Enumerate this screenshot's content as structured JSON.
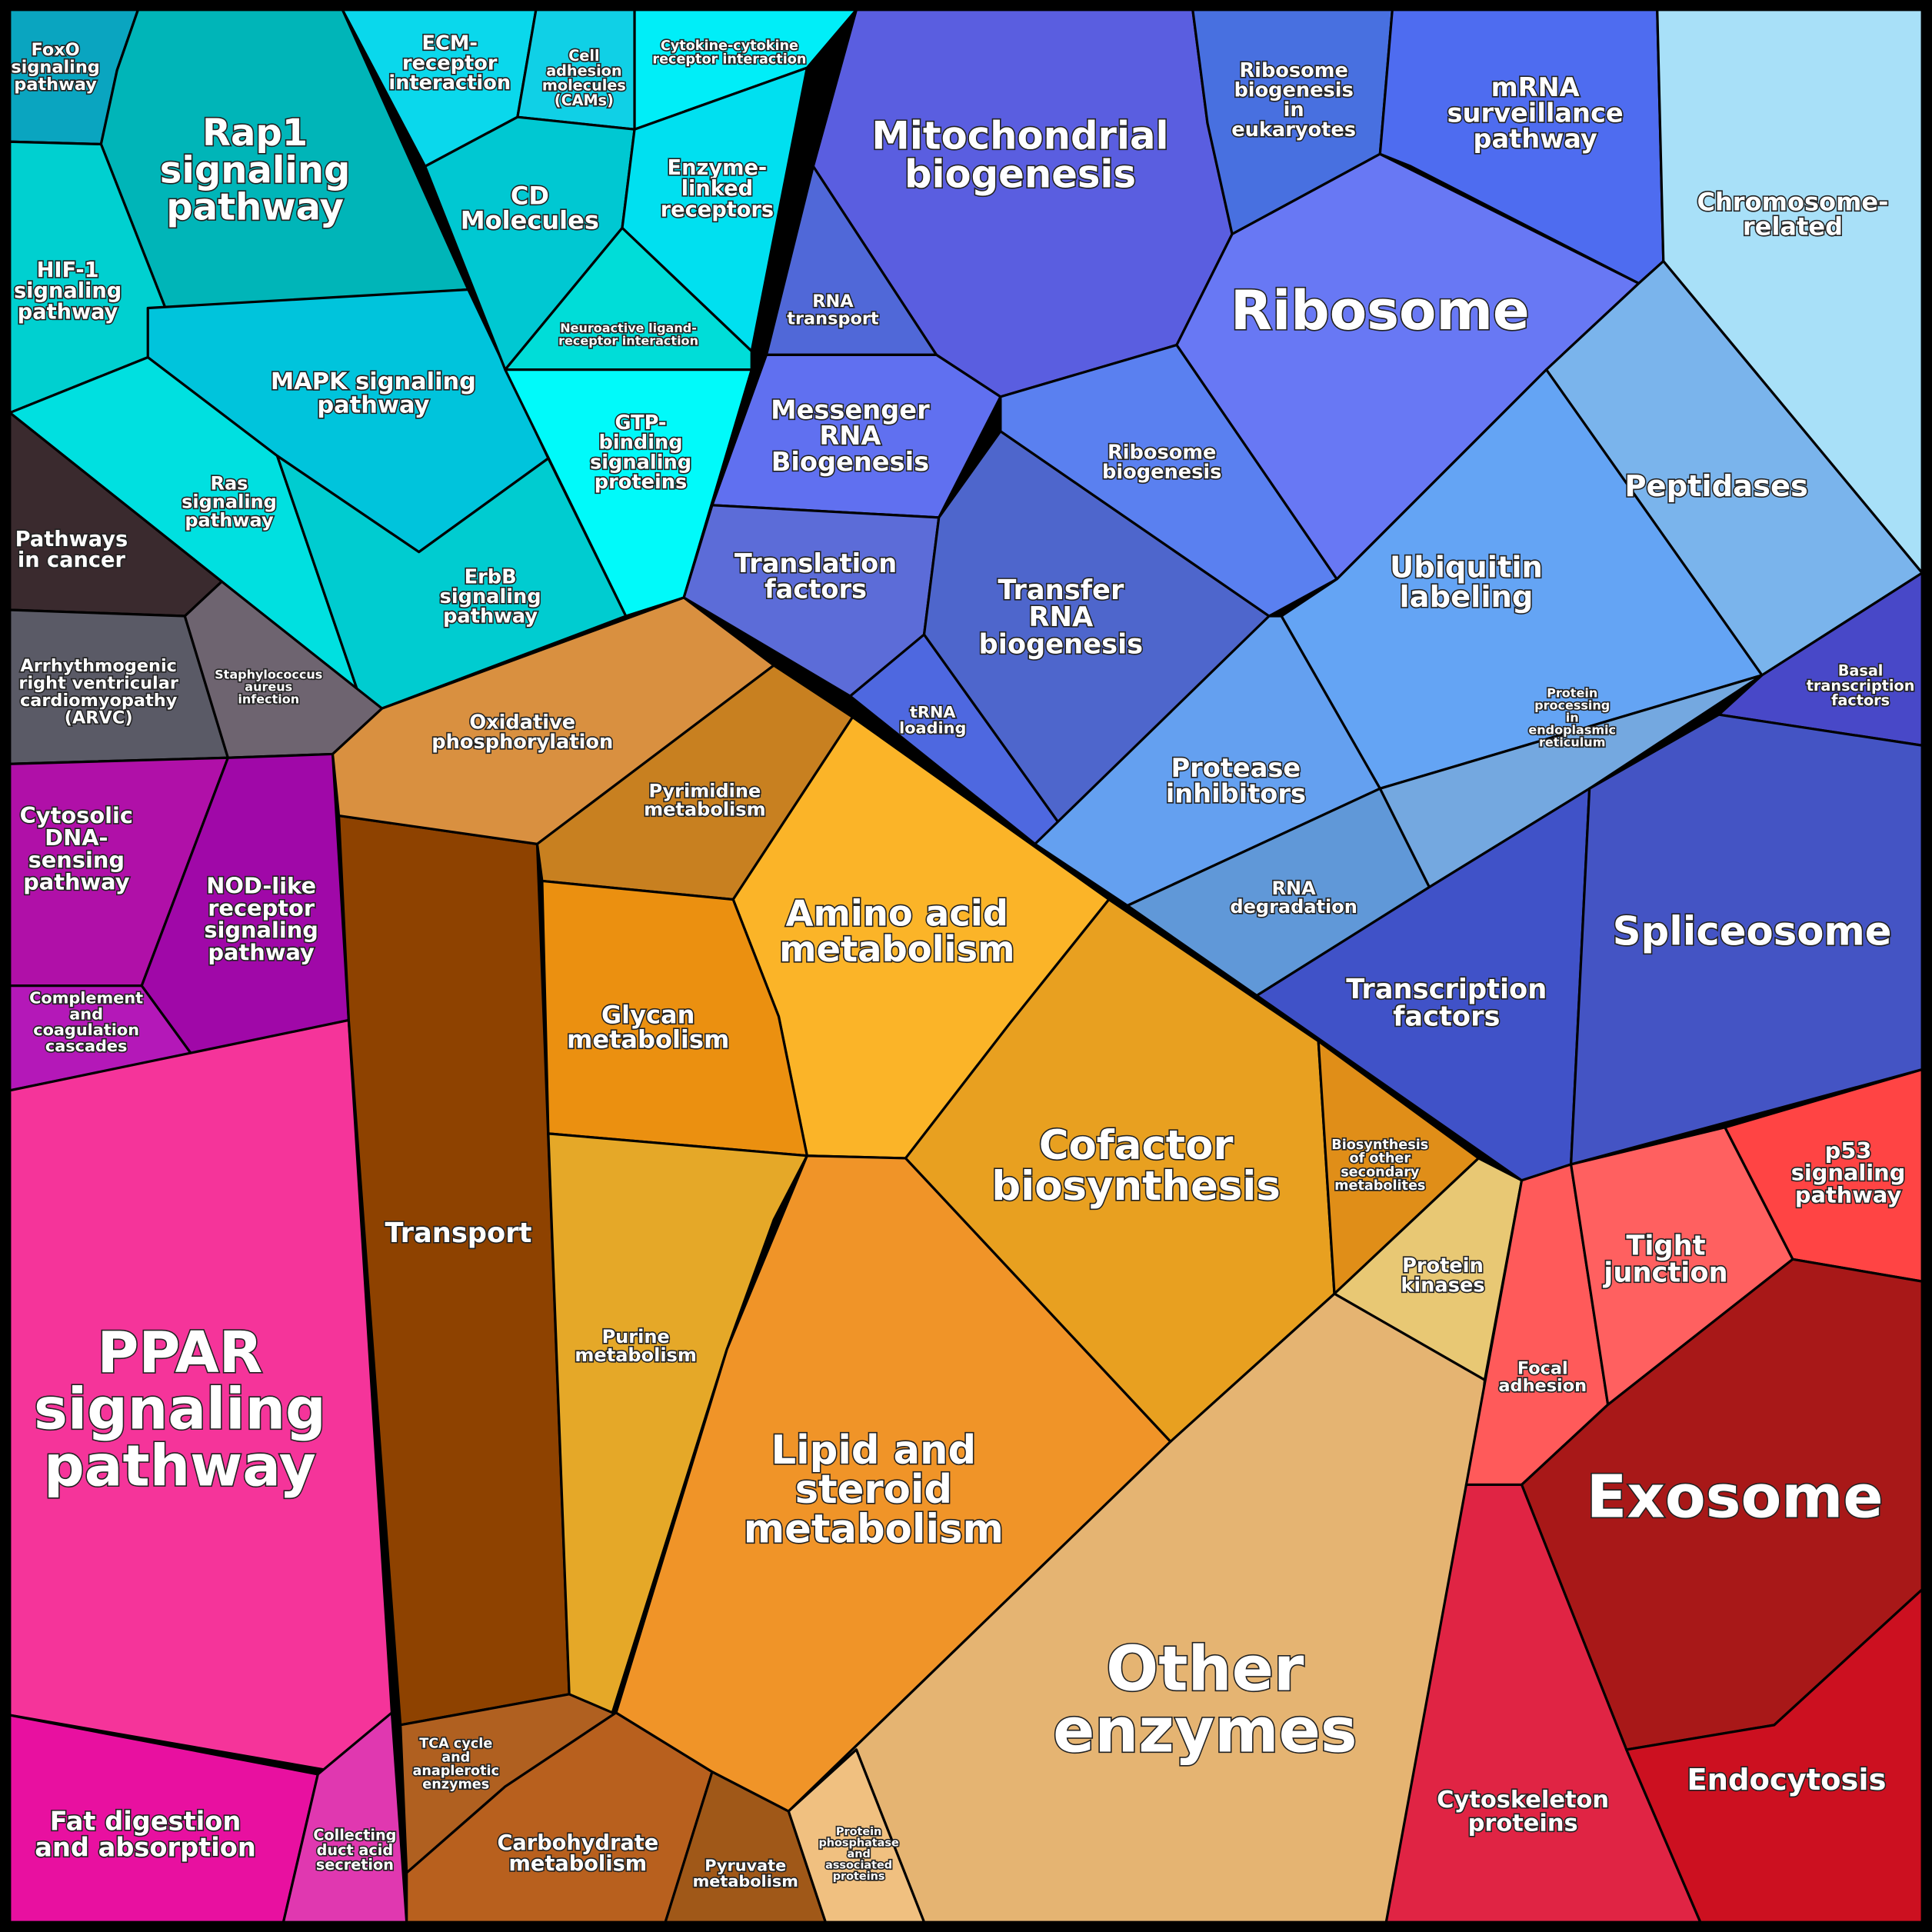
{
  "cells": [
    {
      "lines": [
        "FoxO",
        "signaling",
        "pathway"
      ]
    },
    {
      "lines": [
        "Rap1",
        "signaling",
        "pathway"
      ]
    },
    {
      "lines": [
        "HIF-1",
        "signaling",
        "pathway"
      ]
    },
    {
      "lines": [
        "MAPK signaling",
        "pathway"
      ]
    },
    {
      "lines": [
        "Ras",
        "signaling",
        "pathway"
      ]
    },
    {
      "lines": [
        "ErbB",
        "signaling",
        "pathway"
      ]
    },
    {
      "lines": [
        "ECM-",
        "receptor",
        "interaction"
      ]
    },
    {
      "lines": [
        "Cell",
        "adhesion",
        "molecules",
        "(CAMs)"
      ]
    },
    {
      "lines": [
        "Cytokine-cytokine",
        "receptor interaction"
      ]
    },
    {
      "lines": [
        "CD",
        "Molecules"
      ]
    },
    {
      "lines": [
        "Enzyme-",
        "linked",
        "receptors"
      ]
    },
    {
      "lines": [
        "Neuroactive ligand-",
        "receptor interaction"
      ]
    },
    {
      "lines": [
        "GTP-",
        "binding",
        "signaling",
        "proteins"
      ]
    },
    {
      "lines": [
        "Pathways",
        "in cancer"
      ]
    },
    {
      "lines": [
        "Arrhythmogenic",
        "right ventricular",
        "cardiomyopathy",
        "(ARVC)"
      ]
    },
    {
      "lines": [
        "Staphylococcus",
        "aureus",
        "infection"
      ]
    },
    {
      "lines": [
        "Cytosolic",
        "DNA-",
        "sensing",
        "pathway"
      ]
    },
    {
      "lines": [
        "NOD-like",
        "receptor",
        "signaling",
        "pathway"
      ]
    },
    {
      "lines": [
        "Complement",
        "and",
        "coagulation",
        "cascades"
      ]
    },
    {
      "lines": [
        "PPAR",
        "signaling",
        "pathway"
      ]
    },
    {
      "lines": [
        "Fat digestion",
        "and absorption"
      ]
    },
    {
      "lines": [
        "Collecting",
        "duct acid",
        "secretion"
      ]
    },
    {
      "lines": [
        "Transport"
      ]
    },
    {
      "lines": [
        "TCA cycle",
        "and",
        "anaplerotic",
        "enzymes"
      ]
    },
    {
      "lines": [
        "Carbohydrate",
        "metabolism"
      ]
    },
    {
      "lines": [
        "Pyruvate",
        "metabolism"
      ]
    },
    {
      "lines": [
        "Oxidative",
        "phosphorylation"
      ]
    },
    {
      "lines": [
        "Pyrimidine",
        "metabolism"
      ]
    },
    {
      "lines": [
        "Amino acid",
        "metabolism"
      ]
    },
    {
      "lines": [
        "Glycan",
        "metabolism"
      ]
    },
    {
      "lines": [
        "Purine",
        "metabolism"
      ]
    },
    {
      "lines": [
        "Lipid and",
        "steroid",
        "metabolism"
      ]
    },
    {
      "lines": [
        "Cofactor",
        "biosynthesis"
      ]
    },
    {
      "lines": [
        "Biosynthesis",
        "of other",
        "secondary",
        "metabolites"
      ]
    },
    {
      "lines": [
        "Protein",
        "kinases"
      ]
    },
    {
      "lines": [
        "Other",
        "enzymes"
      ]
    },
    {
      "lines": [
        "Protein",
        "phosphatase",
        "and",
        "associated",
        "proteins"
      ]
    },
    {
      "lines": [
        "Mitochondrial",
        "biogenesis"
      ]
    },
    {
      "lines": [
        "RNA",
        "transport"
      ]
    },
    {
      "lines": [
        "Messenger",
        "RNA",
        "Biogenesis"
      ]
    },
    {
      "lines": [
        "Translation",
        "factors"
      ]
    },
    {
      "lines": [
        "tRNA",
        "loading"
      ]
    },
    {
      "lines": [
        "Transfer",
        "RNA",
        "biogenesis"
      ]
    },
    {
      "lines": [
        "Ribosome",
        "biogenesis"
      ]
    },
    {
      "lines": [
        "Ribosome",
        "biogenesis",
        "in",
        "eukaryotes"
      ]
    },
    {
      "lines": [
        "mRNA",
        "surveillance",
        "pathway"
      ]
    },
    {
      "lines": [
        "Ribosome"
      ]
    },
    {
      "lines": [
        "Chromosome-",
        "related"
      ]
    },
    {
      "lines": [
        "Peptidases"
      ]
    },
    {
      "lines": [
        "Ubiquitin",
        "labeling"
      ]
    },
    {
      "lines": [
        "Protein",
        "processing",
        "in",
        "endoplasmic",
        "reticulum"
      ]
    },
    {
      "lines": [
        "Protease",
        "inhibitors"
      ]
    },
    {
      "lines": [
        "RNA",
        "degradation"
      ]
    },
    {
      "lines": [
        "Transcription",
        "factors"
      ]
    },
    {
      "lines": [
        "Basal",
        "transcription",
        "factors"
      ]
    },
    {
      "lines": [
        "Spliceosome"
      ]
    },
    {
      "lines": [
        "Focal",
        "adhesion"
      ]
    },
    {
      "lines": [
        "Tight",
        "junction"
      ]
    },
    {
      "lines": [
        "p53",
        "signaling",
        "pathway"
      ]
    },
    {
      "lines": [
        "Exosome"
      ]
    },
    {
      "lines": [
        "Cytoskeleton",
        "proteins"
      ]
    },
    {
      "lines": [
        "Endocytosis"
      ]
    }
  ]
}
